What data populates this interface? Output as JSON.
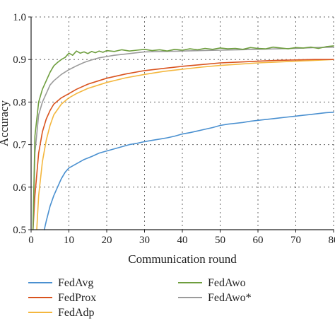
{
  "chart_data": {
    "type": "line",
    "xlabel": "Communication round",
    "ylabel": "Accuracy",
    "xlim": [
      0,
      80
    ],
    "ylim": [
      0.5,
      1.0
    ],
    "xticks": [
      "0",
      "10",
      "20",
      "30",
      "40",
      "50",
      "60",
      "70",
      "80"
    ],
    "yticks": [
      "0.5",
      "0.6",
      "0.7",
      "0.8",
      "0.9",
      "1.0"
    ],
    "grid": true,
    "legend": "bottom-two-columns",
    "series": [
      {
        "name": "FedAvg",
        "color": "#4a90d0",
        "x": [
          3.5,
          4,
          5,
          6,
          7,
          8,
          9,
          10,
          12,
          14,
          16,
          18,
          20,
          22,
          24,
          26,
          28,
          30,
          32,
          34,
          36,
          38,
          40,
          42,
          44,
          46,
          48,
          50,
          52,
          54,
          56,
          58,
          60,
          62,
          64,
          66,
          68,
          70,
          72,
          74,
          76,
          78,
          80
        ],
        "y": [
          0.5,
          0.52,
          0.555,
          0.58,
          0.6,
          0.62,
          0.635,
          0.645,
          0.655,
          0.665,
          0.672,
          0.68,
          0.685,
          0.69,
          0.695,
          0.7,
          0.703,
          0.707,
          0.71,
          0.713,
          0.716,
          0.72,
          0.725,
          0.728,
          0.732,
          0.736,
          0.74,
          0.745,
          0.748,
          0.75,
          0.752,
          0.755,
          0.757,
          0.759,
          0.761,
          0.763,
          0.765,
          0.767,
          0.769,
          0.771,
          0.773,
          0.775,
          0.776
        ]
      },
      {
        "name": "FedProx",
        "color": "#d9531e",
        "x": [
          0.5,
          1,
          2,
          3,
          4,
          5,
          6,
          8,
          10,
          12,
          15,
          20,
          25,
          30,
          35,
          40,
          45,
          50,
          55,
          60,
          65,
          70,
          75,
          80
        ],
        "y": [
          0.5,
          0.58,
          0.68,
          0.73,
          0.76,
          0.78,
          0.795,
          0.81,
          0.82,
          0.83,
          0.842,
          0.856,
          0.866,
          0.874,
          0.879,
          0.884,
          0.888,
          0.892,
          0.894,
          0.896,
          0.898,
          0.899,
          0.9,
          0.9
        ]
      },
      {
        "name": "FedAdp",
        "color": "#f4b73e",
        "x": [
          1.5,
          2,
          3,
          4,
          5,
          6,
          8,
          10,
          12,
          15,
          20,
          25,
          30,
          35,
          40,
          45,
          50,
          55,
          60,
          65,
          70,
          75,
          80
        ],
        "y": [
          0.5,
          0.58,
          0.66,
          0.71,
          0.745,
          0.77,
          0.795,
          0.81,
          0.82,
          0.832,
          0.846,
          0.857,
          0.865,
          0.872,
          0.877,
          0.882,
          0.886,
          0.889,
          0.892,
          0.894,
          0.896,
          0.898,
          0.9
        ]
      },
      {
        "name": "FedAwo",
        "color": "#6e9e3e",
        "x": [
          0.5,
          1,
          2,
          3,
          4,
          5,
          6,
          7,
          8,
          9,
          10,
          11,
          12,
          13,
          14,
          15,
          16,
          17,
          18,
          19,
          20,
          22,
          24,
          26,
          28,
          30,
          32,
          34,
          36,
          38,
          40,
          42,
          44,
          46,
          48,
          50,
          52,
          54,
          56,
          58,
          60,
          62,
          64,
          66,
          68,
          70,
          72,
          74,
          76,
          78,
          80
        ],
        "y": [
          0.5,
          0.72,
          0.8,
          0.83,
          0.85,
          0.87,
          0.885,
          0.893,
          0.9,
          0.905,
          0.915,
          0.91,
          0.92,
          0.915,
          0.918,
          0.914,
          0.919,
          0.916,
          0.92,
          0.917,
          0.921,
          0.919,
          0.923,
          0.92,
          0.922,
          0.924,
          0.921,
          0.923,
          0.92,
          0.924,
          0.922,
          0.925,
          0.923,
          0.926,
          0.924,
          0.927,
          0.925,
          0.926,
          0.924,
          0.928,
          0.926,
          0.925,
          0.929,
          0.927,
          0.925,
          0.928,
          0.927,
          0.929,
          0.926,
          0.93,
          0.932
        ]
      },
      {
        "name": "FedAwo*",
        "color": "#9b9b9b",
        "x": [
          0.5,
          1,
          2,
          3,
          4,
          5,
          6,
          8,
          10,
          12,
          14,
          16,
          18,
          20,
          22,
          25,
          28,
          30,
          35,
          40,
          45,
          50,
          55,
          60,
          65,
          70,
          75,
          80
        ],
        "y": [
          0.5,
          0.68,
          0.77,
          0.8,
          0.82,
          0.84,
          0.85,
          0.865,
          0.876,
          0.885,
          0.893,
          0.899,
          0.904,
          0.907,
          0.91,
          0.913,
          0.916,
          0.918,
          0.919,
          0.92,
          0.921,
          0.922,
          0.923,
          0.924,
          0.925,
          0.926,
          0.928,
          0.929
        ]
      }
    ]
  }
}
